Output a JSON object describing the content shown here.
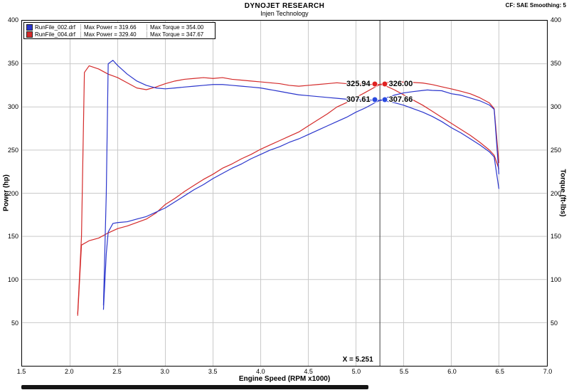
{
  "header": {
    "title": "DYNOJET RESEARCH",
    "subtitle": "Injen Technology",
    "cf_label": "CF: SAE  Smoothing: 5"
  },
  "axes": {
    "x_label": "Engine Speed (RPM x1000)",
    "y_left_label": "Power (hp)",
    "y_right_label": "Torque (ft-lbs)",
    "x_ticks": [
      "1.5",
      "2.0",
      "2.5",
      "3.0",
      "3.5",
      "4.0",
      "4.5",
      "5.0",
      "5.5",
      "6.0",
      "6.5",
      "7.0"
    ],
    "y_ticks": [
      "50",
      "100",
      "150",
      "200",
      "250",
      "300",
      "350",
      "400"
    ]
  },
  "legend": {
    "entries": [
      {
        "file": "RunFile_002.drf",
        "power_label": "Max Power = 319.66",
        "torque_label": "Max Torque = 354.00",
        "color": "#2a35cc"
      },
      {
        "file": "RunFile_004.drf",
        "power_label": "Max Power = 329.40",
        "torque_label": "Max Torque = 347.67",
        "color": "#d42a2a"
      }
    ]
  },
  "cursor": {
    "x": 5.251,
    "label": "X = 5.251"
  },
  "markers": [
    {
      "name": "red-power-at-cursor",
      "value": 325.94,
      "label": "325.94",
      "side": "left",
      "color": "#e02020"
    },
    {
      "name": "red-torque-at-cursor",
      "value": 326.0,
      "label": "326.00",
      "side": "right",
      "color": "#e02020"
    },
    {
      "name": "blue-power-at-cursor",
      "value": 307.61,
      "label": "307.61",
      "side": "left",
      "color": "#2a4ae0"
    },
    {
      "name": "blue-torque-at-cursor",
      "value": 307.66,
      "label": "307.66",
      "side": "right",
      "color": "#2a4ae0"
    }
  ],
  "chart_data": {
    "type": "line",
    "title": "DYNOJET RESEARCH - Injen Technology",
    "xlabel": "Engine Speed (RPM x1000)",
    "ylabel_left": "Power (hp)",
    "ylabel_right": "Torque (ft-lbs)",
    "xlim": [
      1.5,
      7.0
    ],
    "ylim": [
      0,
      400
    ],
    "x_gridline_step": 0.5,
    "y_gridline_step": 50,
    "grid": true,
    "legend_position": "top-left",
    "cursor_x": 5.251,
    "max_values": {
      "RunFile_002.drf": {
        "max_power": 319.66,
        "max_torque": 354.0
      },
      "RunFile_004.drf": {
        "max_power": 329.4,
        "max_torque": 347.67
      }
    },
    "cursor_readout": [
      {
        "series": "RunFile_004.drf",
        "power_hp": 325.94,
        "torque_ftlbs": 326.0
      },
      {
        "series": "RunFile_002.drf",
        "power_hp": 307.61,
        "torque_ftlbs": 307.66
      }
    ],
    "series": [
      {
        "id": "torque-curve-runfile-004",
        "name": "RunFile_004.drf Torque (ft-lbs)",
        "color": "#d42a2a",
        "points": [
          [
            2.08,
            60
          ],
          [
            2.12,
            150
          ],
          [
            2.15,
            340
          ],
          [
            2.2,
            347.67
          ],
          [
            2.3,
            344
          ],
          [
            2.4,
            338
          ],
          [
            2.5,
            334
          ],
          [
            2.6,
            328
          ],
          [
            2.7,
            322
          ],
          [
            2.8,
            320
          ],
          [
            2.9,
            323
          ],
          [
            3.0,
            327
          ],
          [
            3.1,
            330
          ],
          [
            3.2,
            332
          ],
          [
            3.3,
            333
          ],
          [
            3.4,
            334
          ],
          [
            3.5,
            333
          ],
          [
            3.6,
            334
          ],
          [
            3.7,
            332
          ],
          [
            3.8,
            331
          ],
          [
            3.9,
            330
          ],
          [
            4.0,
            329
          ],
          [
            4.1,
            328
          ],
          [
            4.2,
            327
          ],
          [
            4.3,
            325
          ],
          [
            4.4,
            324
          ],
          [
            4.5,
            325
          ],
          [
            4.6,
            326
          ],
          [
            4.7,
            327
          ],
          [
            4.8,
            328
          ],
          [
            4.9,
            327
          ],
          [
            5.0,
            326.5
          ],
          [
            5.1,
            326.2
          ],
          [
            5.2,
            326.1
          ],
          [
            5.251,
            326.0
          ],
          [
            5.3,
            325
          ],
          [
            5.4,
            320
          ],
          [
            5.5,
            314
          ],
          [
            5.6,
            308
          ],
          [
            5.7,
            302
          ],
          [
            5.8,
            295
          ],
          [
            5.9,
            288
          ],
          [
            6.0,
            281
          ],
          [
            6.1,
            274
          ],
          [
            6.2,
            267
          ],
          [
            6.3,
            259
          ],
          [
            6.4,
            250
          ],
          [
            6.45,
            244
          ],
          [
            6.5,
            228
          ]
        ]
      },
      {
        "id": "power-curve-runfile-004",
        "name": "RunFile_004.drf Power (hp)",
        "color": "#d42a2a",
        "points": [
          [
            2.08,
            58
          ],
          [
            2.12,
            140
          ],
          [
            2.2,
            145
          ],
          [
            2.3,
            148
          ],
          [
            2.4,
            154
          ],
          [
            2.5,
            159
          ],
          [
            2.6,
            162
          ],
          [
            2.7,
            166
          ],
          [
            2.8,
            170
          ],
          [
            2.9,
            177
          ],
          [
            3.0,
            187
          ],
          [
            3.1,
            194
          ],
          [
            3.2,
            202
          ],
          [
            3.3,
            209
          ],
          [
            3.4,
            216
          ],
          [
            3.5,
            222
          ],
          [
            3.6,
            229
          ],
          [
            3.7,
            234
          ],
          [
            3.8,
            240
          ],
          [
            3.9,
            245
          ],
          [
            4.0,
            251
          ],
          [
            4.1,
            256
          ],
          [
            4.2,
            261
          ],
          [
            4.3,
            266
          ],
          [
            4.4,
            271
          ],
          [
            4.5,
            278
          ],
          [
            4.6,
            285
          ],
          [
            4.7,
            292
          ],
          [
            4.8,
            300
          ],
          [
            4.9,
            305
          ],
          [
            5.0,
            311
          ],
          [
            5.1,
            317
          ],
          [
            5.2,
            323
          ],
          [
            5.251,
            325.94
          ],
          [
            5.3,
            327.9
          ],
          [
            5.4,
            329.4
          ],
          [
            5.5,
            328.8
          ],
          [
            5.6,
            328.4
          ],
          [
            5.7,
            327.7
          ],
          [
            5.8,
            325.9
          ],
          [
            5.9,
            323.4
          ],
          [
            6.0,
            320.9
          ],
          [
            6.1,
            318.2
          ],
          [
            6.2,
            315.2
          ],
          [
            6.3,
            310.6
          ],
          [
            6.4,
            304.6
          ],
          [
            6.45,
            298
          ],
          [
            6.5,
            235
          ]
        ]
      },
      {
        "id": "torque-curve-runfile-002",
        "name": "RunFile_002.drf Torque (ft-lbs)",
        "color": "#2a35cc",
        "points": [
          [
            2.35,
            70
          ],
          [
            2.38,
            200
          ],
          [
            2.4,
            350
          ],
          [
            2.45,
            354.0
          ],
          [
            2.5,
            348
          ],
          [
            2.6,
            338
          ],
          [
            2.7,
            330
          ],
          [
            2.8,
            325
          ],
          [
            2.9,
            322
          ],
          [
            3.0,
            321
          ],
          [
            3.1,
            322
          ],
          [
            3.2,
            323
          ],
          [
            3.3,
            324
          ],
          [
            3.4,
            325
          ],
          [
            3.5,
            326
          ],
          [
            3.6,
            326
          ],
          [
            3.7,
            325
          ],
          [
            3.8,
            324
          ],
          [
            3.9,
            323
          ],
          [
            4.0,
            322
          ],
          [
            4.1,
            320
          ],
          [
            4.2,
            318
          ],
          [
            4.3,
            316
          ],
          [
            4.4,
            314
          ],
          [
            4.5,
            313
          ],
          [
            4.6,
            312
          ],
          [
            4.7,
            311
          ],
          [
            4.8,
            310
          ],
          [
            4.9,
            309
          ],
          [
            5.0,
            308.5
          ],
          [
            5.1,
            308.2
          ],
          [
            5.2,
            307.8
          ],
          [
            5.251,
            307.66
          ],
          [
            5.3,
            307
          ],
          [
            5.4,
            305
          ],
          [
            5.5,
            302
          ],
          [
            5.6,
            298
          ],
          [
            5.7,
            294
          ],
          [
            5.8,
            289
          ],
          [
            5.9,
            283
          ],
          [
            6.0,
            276
          ],
          [
            6.1,
            270
          ],
          [
            6.2,
            263
          ],
          [
            6.3,
            256
          ],
          [
            6.4,
            248
          ],
          [
            6.45,
            242
          ],
          [
            6.5,
            205
          ]
        ]
      },
      {
        "id": "power-curve-runfile-002",
        "name": "RunFile_002.drf Power (hp)",
        "color": "#2a35cc",
        "points": [
          [
            2.35,
            65
          ],
          [
            2.38,
            130
          ],
          [
            2.4,
            155
          ],
          [
            2.45,
            165
          ],
          [
            2.5,
            166
          ],
          [
            2.6,
            167
          ],
          [
            2.7,
            170
          ],
          [
            2.8,
            173
          ],
          [
            2.9,
            178
          ],
          [
            3.0,
            183
          ],
          [
            3.1,
            190
          ],
          [
            3.2,
            197
          ],
          [
            3.3,
            204
          ],
          [
            3.4,
            210
          ],
          [
            3.5,
            217
          ],
          [
            3.6,
            223
          ],
          [
            3.7,
            229
          ],
          [
            3.8,
            234
          ],
          [
            3.9,
            240
          ],
          [
            4.0,
            245
          ],
          [
            4.1,
            250
          ],
          [
            4.2,
            254
          ],
          [
            4.3,
            259
          ],
          [
            4.4,
            263
          ],
          [
            4.5,
            268
          ],
          [
            4.6,
            273
          ],
          [
            4.7,
            278
          ],
          [
            4.8,
            283
          ],
          [
            4.9,
            288
          ],
          [
            5.0,
            294
          ],
          [
            5.1,
            299
          ],
          [
            5.2,
            305
          ],
          [
            5.251,
            307.61
          ],
          [
            5.3,
            310
          ],
          [
            5.4,
            313.6
          ],
          [
            5.5,
            316.2
          ],
          [
            5.6,
            317.8
          ],
          [
            5.7,
            319.1
          ],
          [
            5.75,
            319.66
          ],
          [
            5.8,
            319.2
          ],
          [
            5.9,
            318.8
          ],
          [
            6.0,
            315.3
          ],
          [
            6.1,
            313.6
          ],
          [
            6.2,
            310.4
          ],
          [
            6.3,
            307.1
          ],
          [
            6.4,
            302.2
          ],
          [
            6.45,
            297.2
          ],
          [
            6.5,
            222
          ]
        ]
      }
    ]
  }
}
